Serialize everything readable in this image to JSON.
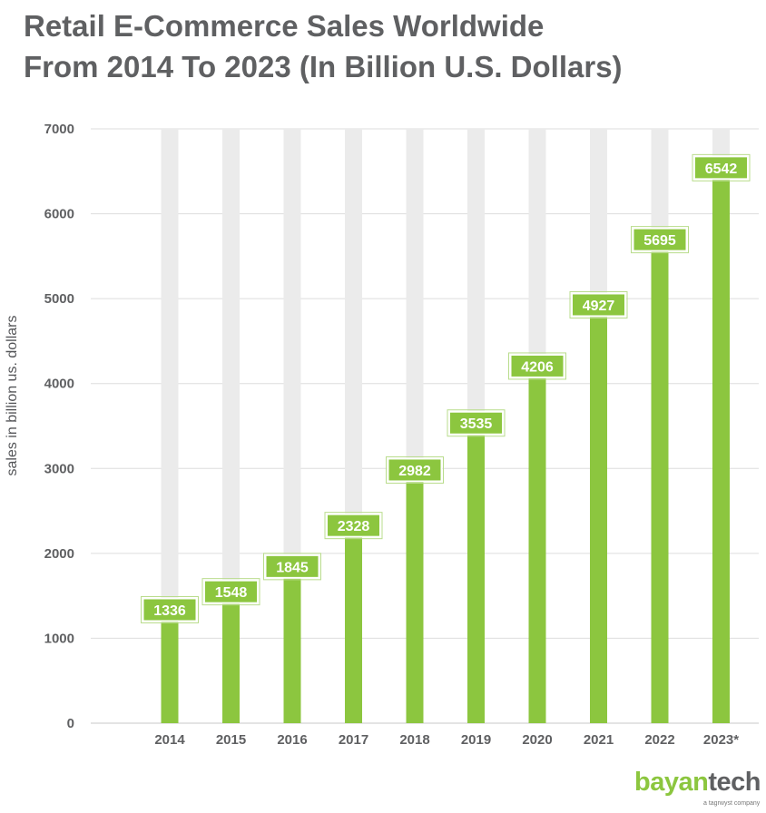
{
  "chart_data": {
    "type": "bar",
    "title": "Retail E-Commerce Sales Worldwide\nFrom 2014 To 2023  (In Billion U.S. Dollars)",
    "ylabel": "sales in billion us. dollars",
    "xlabel": "",
    "categories": [
      "2014",
      "2015",
      "2016",
      "2017",
      "2018",
      "2019",
      "2020",
      "2021",
      "2022",
      "2023*"
    ],
    "values": [
      1336,
      1548,
      1845,
      2328,
      2982,
      3535,
      4206,
      4927,
      5695,
      6542
    ],
    "ylim": [
      0,
      7000
    ],
    "yticks": [
      "0",
      "1000",
      "2000",
      "3000",
      "4000",
      "5000",
      "6000",
      "7000"
    ],
    "grid": true,
    "legend": "none",
    "data_labels": true,
    "colors": {
      "bar": "#8cc63f",
      "background_bar": "#ebebeb",
      "grid": "#dddddd",
      "text": "#5f6062"
    }
  },
  "brand": {
    "logo_part1": "bayan",
    "logo_part2": "tech",
    "tagline": "a tagrwyst company"
  }
}
